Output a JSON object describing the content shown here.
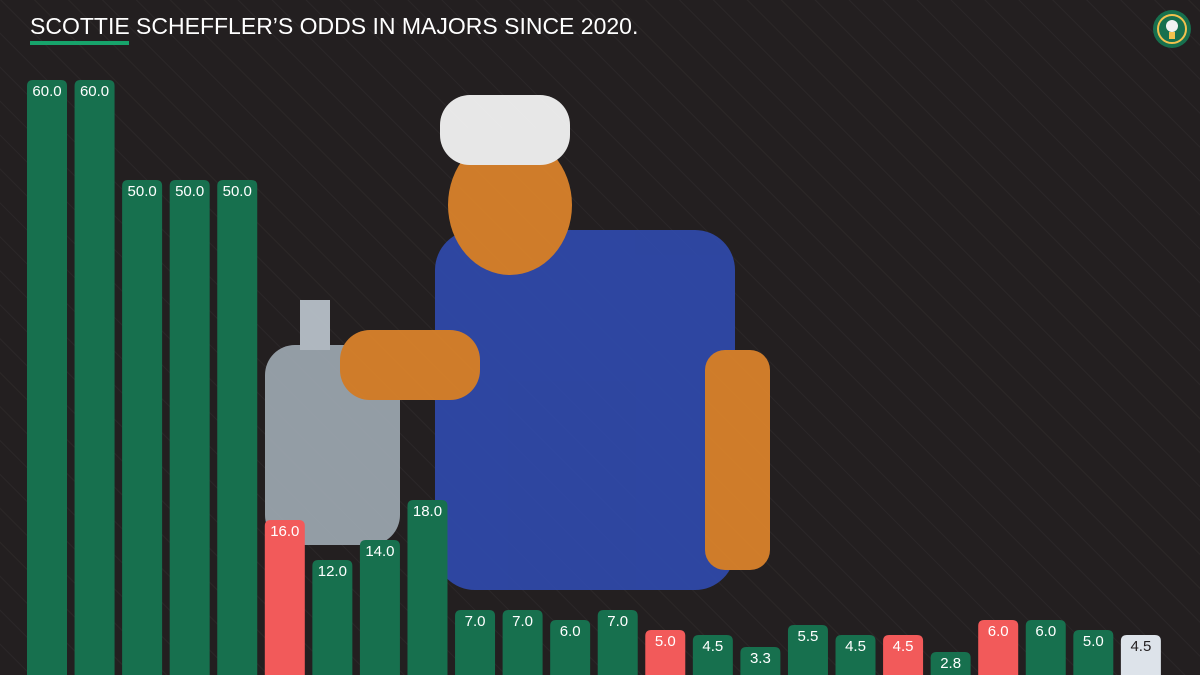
{
  "chart_data": {
    "type": "bar",
    "title": "SCOTTIE SCHEFFLER’S ODDS IN MAJORS SINCE 2020.",
    "values": [
      60,
      60,
      50,
      50,
      50,
      16,
      12,
      14,
      18,
      7,
      7,
      6,
      7,
      5,
      4.5,
      3.3,
      5.5,
      4.5,
      4.5,
      2.8,
      6,
      6,
      5,
      4.5
    ],
    "value_labels": [
      "60.0",
      "60.0",
      "50.0",
      "50.0",
      "50.0",
      "16.0",
      "12.0",
      "14.0",
      "18.0",
      "7.0",
      "7.0",
      "6.0",
      "7.0",
      "5.0",
      "4.5",
      "3.3",
      "5.5",
      "4.5",
      "4.5",
      "2.8",
      "6.0",
      "6.0",
      "5.0",
      "4.5"
    ],
    "colors": [
      "#17704e",
      "#17704e",
      "#17704e",
      "#17704e",
      "#17704e",
      "#f25a5a",
      "#17704e",
      "#17704e",
      "#17704e",
      "#17704e",
      "#17704e",
      "#17704e",
      "#17704e",
      "#f25a5a",
      "#17704e",
      "#17704e",
      "#17704e",
      "#17704e",
      "#f25a5a",
      "#17704e",
      "#f25a5a",
      "#17704e",
      "#17704e",
      "#dde3ea"
    ],
    "ylim": [
      0,
      60
    ]
  }
}
